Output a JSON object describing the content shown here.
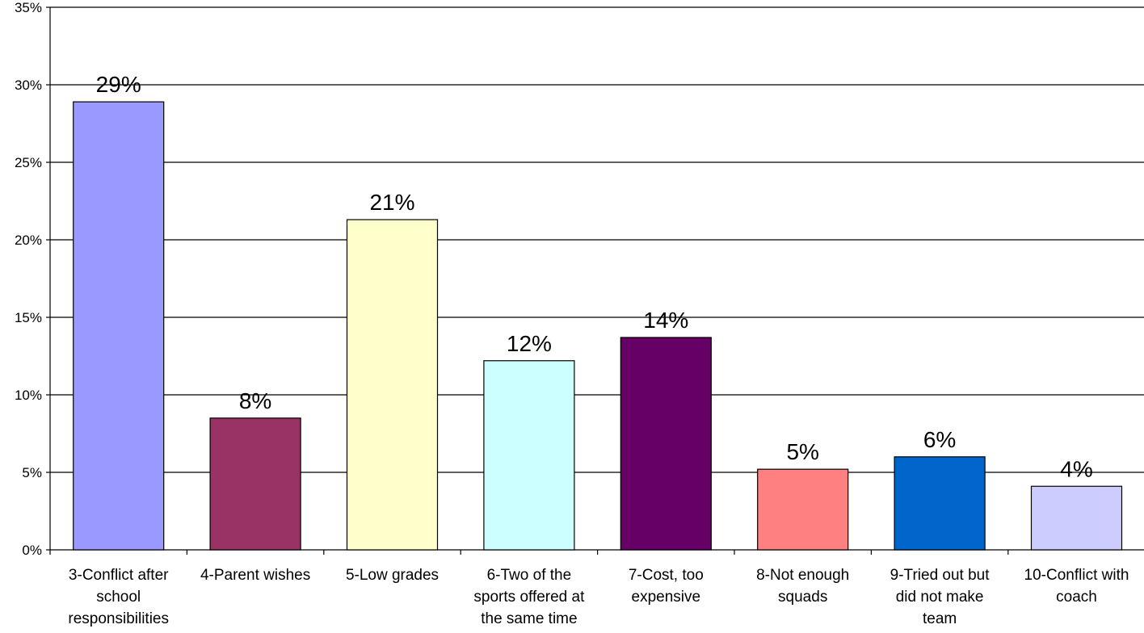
{
  "chart_data": {
    "type": "bar",
    "title": "",
    "xlabel": "",
    "ylabel": "",
    "ylim": [
      0,
      35
    ],
    "yticks": [
      0,
      5,
      10,
      15,
      20,
      25,
      30,
      35
    ],
    "ytick_labels": [
      "0%",
      "5%",
      "10%",
      "15%",
      "20%",
      "25%",
      "30%",
      "35%"
    ],
    "grid": true,
    "legend": "none",
    "categories": [
      "3-Conflict after school responsibilities",
      "4-Parent wishes",
      "5-Low grades",
      "6-Two of the sports offered at the same time",
      "7-Cost, too expensive",
      "8-Not enough squads",
      "9-Tried out but did not make team",
      "10-Conflict with coach"
    ],
    "category_lines": [
      [
        "3-Conflict after",
        "school",
        "responsibilities"
      ],
      [
        "4-Parent wishes"
      ],
      [
        "5-Low grades"
      ],
      [
        "6-Two of the",
        "sports offered at",
        "the same time"
      ],
      [
        "7-Cost, too",
        "expensive"
      ],
      [
        "8-Not enough",
        "squads"
      ],
      [
        "9-Tried out but",
        "did not make",
        "team"
      ],
      [
        "10-Conflict with",
        "coach"
      ]
    ],
    "values": [
      28.9,
      8.5,
      21.3,
      12.2,
      13.7,
      5.2,
      6.0,
      4.1
    ],
    "data_labels": [
      "29%",
      "8%",
      "21%",
      "12%",
      "14%",
      "5%",
      "6%",
      "4%"
    ],
    "colors": [
      "#9999FF",
      "#993366",
      "#FFFFCC",
      "#CCFFFF",
      "#660066",
      "#FF8080",
      "#0066CC",
      "#CCCCFF"
    ]
  }
}
